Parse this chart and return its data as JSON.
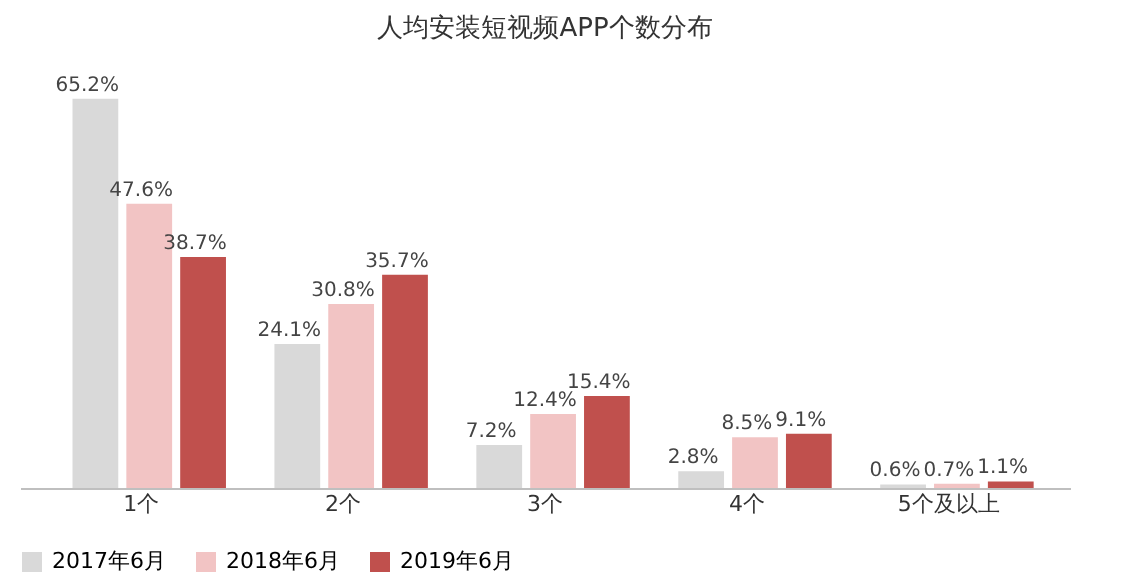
{
  "chart_data": {
    "type": "bar",
    "title": "人均安装短视频APP个数分布",
    "categories": [
      "1个",
      "2个",
      "3个",
      "4个",
      "5个及以上"
    ],
    "series": [
      {
        "name": "2017年6月",
        "color": "#d9d9d9",
        "values": [
          65.2,
          24.1,
          7.2,
          2.8,
          0.6
        ],
        "value_labels": [
          "65.2%",
          "24.1%",
          "7.2%",
          "2.8%",
          "0.6%"
        ]
      },
      {
        "name": "2018年6月",
        "color": "#f2c4c4",
        "values": [
          47.6,
          30.8,
          12.4,
          8.5,
          0.7
        ],
        "value_labels": [
          "47.6%",
          "30.8%",
          "12.4%",
          "8.5%",
          "0.7%"
        ]
      },
      {
        "name": "2019年6月",
        "color": "#c0504d",
        "values": [
          38.7,
          35.7,
          15.4,
          9.1,
          1.1
        ],
        "value_labels": [
          "38.7%",
          "35.7%",
          "15.4%",
          "9.1%",
          "1.1%"
        ]
      }
    ],
    "legend": "bottom",
    "grid": false
  }
}
